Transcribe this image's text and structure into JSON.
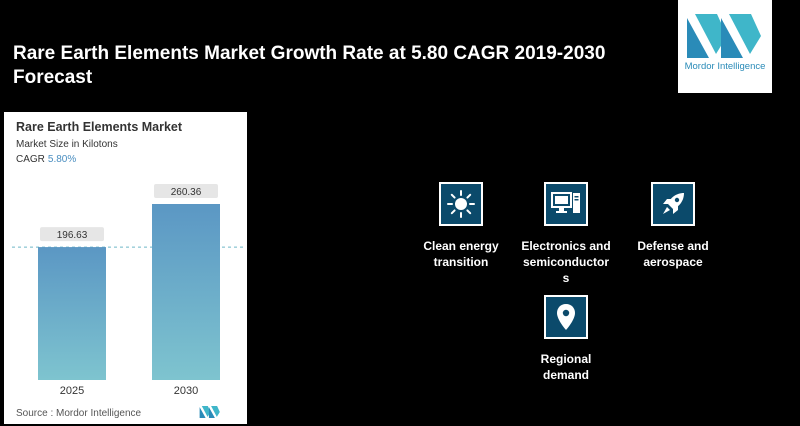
{
  "headline": "Rare Earth Elements Market Growth Rate at 5.80 CAGR 2019-2030 Forecast",
  "logo": {
    "text": "Mordor Intelligence"
  },
  "card": {
    "title": "Rare Earth Elements Market",
    "subtitle": "Market Size in Kilotons",
    "cagr_label": "CAGR",
    "cagr_value": "5.80%",
    "source": "Source :  Mordor Intelligence"
  },
  "chart_data": {
    "type": "bar",
    "categories": [
      "2025",
      "2030"
    ],
    "values": [
      196.63,
      260.36
    ],
    "value_labels": [
      "196.63",
      "260.36"
    ],
    "title": "Rare Earth Elements Market",
    "subtitle": "Market Size in Kilotons",
    "xlabel": "",
    "ylabel": "",
    "ylim": [
      0,
      260.36
    ],
    "grid": false,
    "reference_line": 196.63,
    "bar_color_top": "#5b97c4",
    "bar_color_bottom": "#7ec4cf"
  },
  "drivers": [
    {
      "icon": "sun-icon",
      "label_lines": [
        "Clean energy",
        "transition"
      ]
    },
    {
      "icon": "computer-icon",
      "label_lines": [
        "Electronics and",
        "semiconductor",
        "s"
      ]
    },
    {
      "icon": "rocket-icon",
      "label_lines": [
        "Defense and",
        "aerospace"
      ]
    },
    {
      "icon": "location-pin-icon",
      "label_lines": [
        "Regional",
        "demand"
      ]
    }
  ],
  "colors": {
    "icon_bg": "#0b4a6b",
    "accent": "#2a8bb8"
  }
}
